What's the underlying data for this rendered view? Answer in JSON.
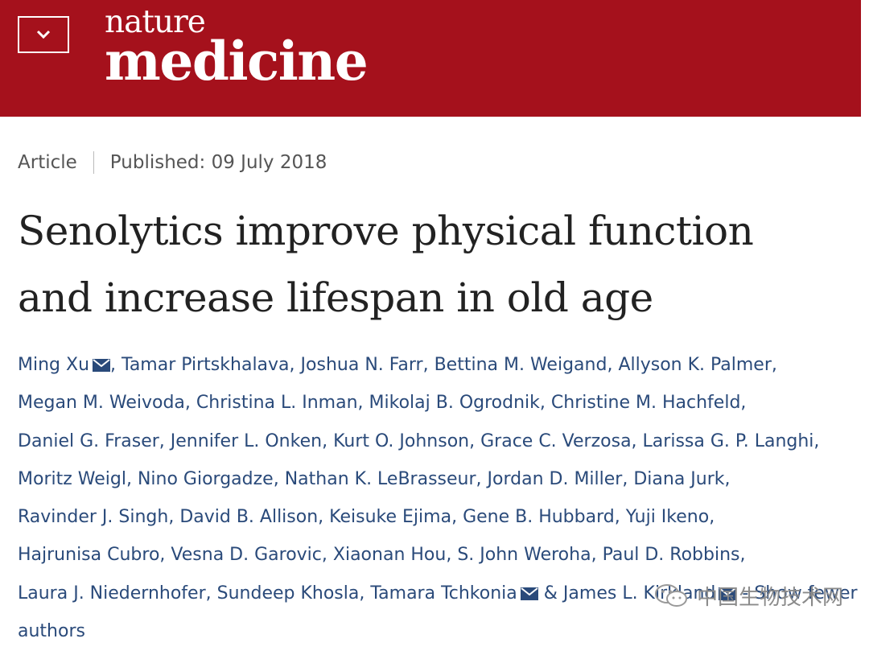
{
  "header": {
    "menu_icon": "chevron-down-icon",
    "brand_line1": "nature",
    "brand_line2": "medicine",
    "brand_color": "#a5111c"
  },
  "article": {
    "type": "Article",
    "published": "Published: 09 July 2018",
    "title_line1": "Senolytics improve physical function",
    "title_line2": "and increase lifespan in old age",
    "authors": [
      {
        "name": "Ming Xu",
        "sep": ",",
        "mail": true
      },
      {
        "name": "Tamar Pirtskhalava",
        "sep": ","
      },
      {
        "name": "Joshua N. Farr",
        "sep": ","
      },
      {
        "name": "Bettina M. Weigand",
        "sep": ","
      },
      {
        "name": "Allyson K. Palmer",
        "sep": ","
      },
      {
        "name": "Megan M. Weivoda",
        "sep": ","
      },
      {
        "name": "Christina L. Inman",
        "sep": ","
      },
      {
        "name": "Mikolaj B. Ogrodnik",
        "sep": ","
      },
      {
        "name": "Christine M. Hachfeld",
        "sep": ","
      },
      {
        "name": "Daniel G. Fraser",
        "sep": ","
      },
      {
        "name": "Jennifer L. Onken",
        "sep": ","
      },
      {
        "name": "Kurt O. Johnson",
        "sep": ","
      },
      {
        "name": "Grace C. Verzosa",
        "sep": ","
      },
      {
        "name": "Larissa G. P. Langhi",
        "sep": ","
      },
      {
        "name": "Moritz Weigl",
        "sep": ","
      },
      {
        "name": "Nino Giorgadze",
        "sep": ","
      },
      {
        "name": "Nathan K. LeBrasseur",
        "sep": ","
      },
      {
        "name": "Jordan D. Miller",
        "sep": ","
      },
      {
        "name": "Diana Jurk",
        "sep": ","
      },
      {
        "name": "Ravinder J. Singh",
        "sep": ","
      },
      {
        "name": "David B. Allison",
        "sep": ","
      },
      {
        "name": "Keisuke Ejima",
        "sep": ","
      },
      {
        "name": "Gene B. Hubbard",
        "sep": ","
      },
      {
        "name": "Yuji Ikeno",
        "sep": ","
      },
      {
        "name": "Hajrunisa Cubro",
        "sep": ","
      },
      {
        "name": "Vesna D. Garovic",
        "sep": ","
      },
      {
        "name": "Xiaonan Hou",
        "sep": ","
      },
      {
        "name": "S. John Weroha",
        "sep": ","
      },
      {
        "name": "Paul D. Robbins",
        "sep": ","
      },
      {
        "name": "Laura J. Niedernhofer",
        "sep": ","
      },
      {
        "name": "Sundeep Khosla",
        "sep": ","
      },
      {
        "name": "Tamara Tchkonia",
        "sep": " &",
        "mail": true
      },
      {
        "name": "James L. Kirkland",
        "sep": "",
        "mail": true
      }
    ],
    "show_fewer": "- Show fewer authors",
    "link_color": "#2a4a7a"
  },
  "watermark": {
    "icon": "wechat-icon",
    "text": "中国生物技术网"
  }
}
